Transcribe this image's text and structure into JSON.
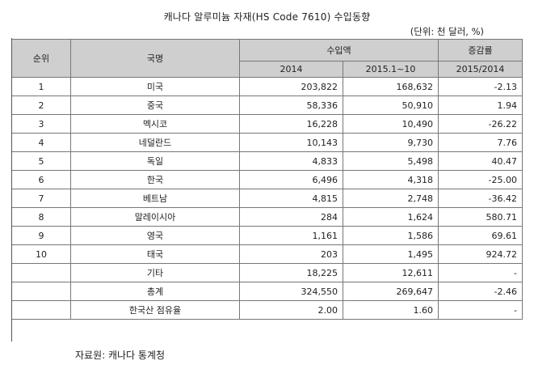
{
  "title": "캐나다 알루미늄 자재(HS Code 7610) 수입동향",
  "unit_note": "(단위: 천 달러, %)",
  "headers": {
    "rank": "순위",
    "country": "국명",
    "imports": "수입액",
    "growth": "증감률",
    "year_2014": "2014",
    "year_2015": "2015.1~10",
    "growth_period": "2015/2014"
  },
  "rows": [
    {
      "rank": "1",
      "country": "미국",
      "v2014": "203,822",
      "v2015": "168,632",
      "growth": "-2.13"
    },
    {
      "rank": "2",
      "country": "중국",
      "v2014": "58,336",
      "v2015": "50,910",
      "growth": "1.94"
    },
    {
      "rank": "3",
      "country": "멕시코",
      "v2014": "16,228",
      "v2015": "10,490",
      "growth": "-26.22"
    },
    {
      "rank": "4",
      "country": "네덜란드",
      "v2014": "10,143",
      "v2015": "9,730",
      "growth": "7.76"
    },
    {
      "rank": "5",
      "country": "독일",
      "v2014": "4,833",
      "v2015": "5,498",
      "growth": "40.47"
    },
    {
      "rank": "6",
      "country": "한국",
      "v2014": "6,496",
      "v2015": "4,318",
      "growth": "-25.00"
    },
    {
      "rank": "7",
      "country": "베트남",
      "v2014": "4,815",
      "v2015": "2,748",
      "growth": "-36.42"
    },
    {
      "rank": "8",
      "country": "말레이시아",
      "v2014": "284",
      "v2015": "1,624",
      "growth": "580.71"
    },
    {
      "rank": "9",
      "country": "영국",
      "v2014": "1,161",
      "v2015": "1,586",
      "growth": "69.61"
    },
    {
      "rank": "10",
      "country": "태국",
      "v2014": "203",
      "v2015": "1,495",
      "growth": "924.72"
    },
    {
      "rank": "",
      "country": "기타",
      "v2014": "18,225",
      "v2015": "12,611",
      "growth": "-"
    },
    {
      "rank": "",
      "country": "총계",
      "v2014": "324,550",
      "v2015": "269,647",
      "growth": "-2.46"
    },
    {
      "rank": "",
      "country": "한국산 점유율",
      "v2014": "2.00",
      "v2015": "1.60",
      "growth": "-"
    }
  ],
  "source": "자료원: 캐나다 통계청"
}
